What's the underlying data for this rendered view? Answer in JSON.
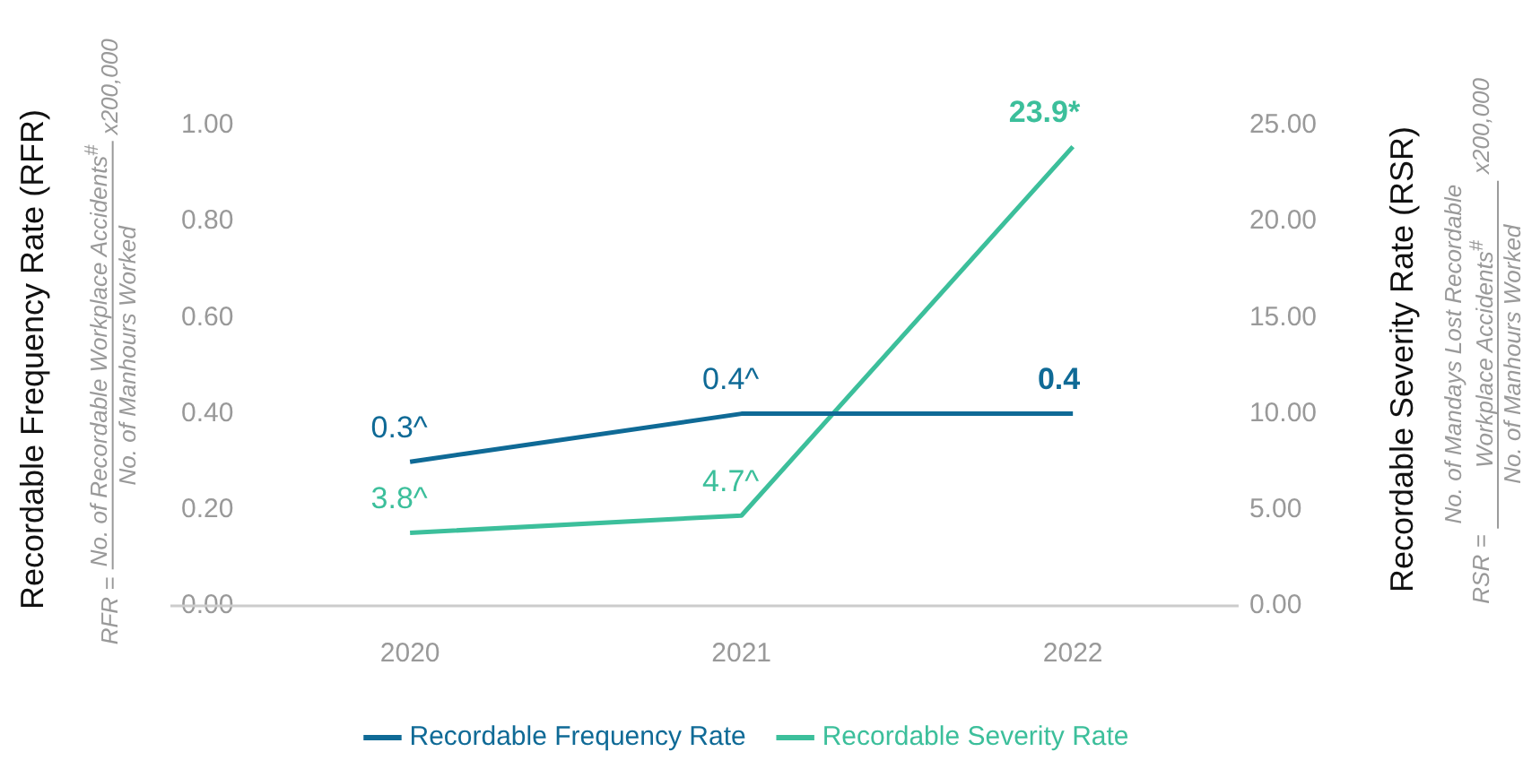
{
  "chart_data": {
    "type": "line",
    "categories": [
      "2020",
      "2021",
      "2022"
    ],
    "ylabel": "Recordable Frequency Rate (RFR)",
    "y2label": "Recordable Severity Rate (RSR)",
    "ylim": [
      0,
      1
    ],
    "yticks": [
      {
        "value": 0,
        "label": "0.00"
      },
      {
        "value": 0.2,
        "label": "0.20"
      },
      {
        "value": 0.4,
        "label": "0.40"
      },
      {
        "value": 0.6,
        "label": "0.60"
      },
      {
        "value": 0.8,
        "label": "0.80"
      },
      {
        "value": 1,
        "label": "1.00"
      }
    ],
    "y2lim": [
      0,
      25
    ],
    "y2ticks": [
      {
        "value": 0,
        "label": "0.00"
      },
      {
        "value": 5,
        "label": "5.00"
      },
      {
        "value": 10,
        "label": "10.00"
      },
      {
        "value": 15,
        "label": "15.00"
      },
      {
        "value": 20,
        "label": "20.00"
      },
      {
        "value": 25,
        "label": "25.00"
      }
    ],
    "series": [
      {
        "name": "Recordable Frequency Rate",
        "color": "#0f6a96",
        "values": [
          0.3,
          0.4,
          0.4
        ],
        "value_labels": [
          "0.3^",
          "0.4^",
          "0.4"
        ]
      },
      {
        "name": "Recordable Severity Rate",
        "color": "#3cbf9b",
        "axis": "y2",
        "values": [
          3.8,
          4.7,
          23.9
        ],
        "value_labels": [
          "3.8^",
          "4.7^",
          "23.9*"
        ]
      }
    ],
    "legend": "bottom",
    "marker": "none",
    "annotations": [
      "RFR =",
      "No. of Recordable Workplace Accidents$^{#}$",
      "No. of Manhours Worked",
      "x200,000",
      "RSR =",
      "No. of Mandays Lost Recordable Workplace Accidents$^{#}$",
      "No. of Manhours Worked",
      "x200,000"
    ]
  }
}
